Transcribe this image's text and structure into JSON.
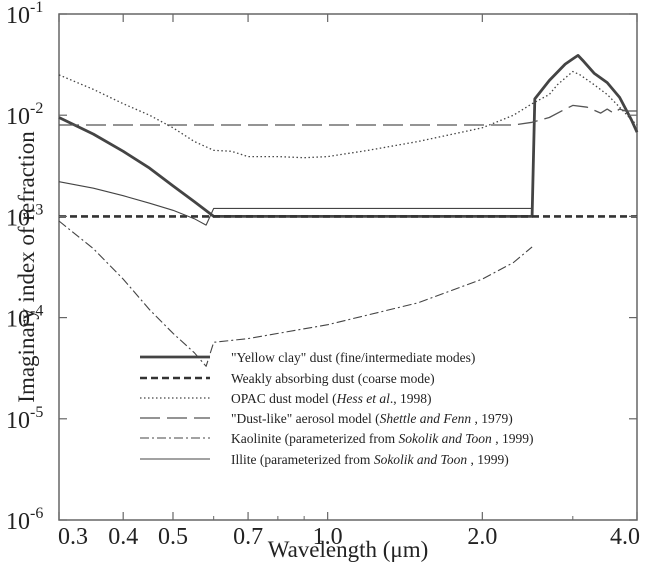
{
  "chart_data": {
    "type": "line",
    "xlabel": "Wavelength  (μm)",
    "ylabel": "Imaginary index of refraction",
    "xscale": "log",
    "yscale": "log",
    "xlim": [
      0.3,
      4.0
    ],
    "ylim": [
      1e-06,
      0.1
    ],
    "x_ticks": [
      {
        "value": 0.3,
        "label": "0.3"
      },
      {
        "value": 0.4,
        "label": "0.4"
      },
      {
        "value": 0.5,
        "label": "0.5"
      },
      {
        "value": 0.7,
        "label": "0.7"
      },
      {
        "value": 1.0,
        "label": "1.0"
      },
      {
        "value": 2.0,
        "label": "2.0"
      },
      {
        "value": 4.0,
        "label": "4.0"
      }
    ],
    "y_ticks": [
      {
        "value": 1e-06,
        "base": "10",
        "exp": "-6"
      },
      {
        "value": 1e-05,
        "base": "10",
        "exp": "-5"
      },
      {
        "value": 0.0001,
        "base": "10",
        "exp": "-4"
      },
      {
        "value": 0.001,
        "base": "10",
        "exp": "-3"
      },
      {
        "value": 0.01,
        "base": "10",
        "exp": "-2"
      },
      {
        "value": 0.1,
        "base": "10",
        "exp": "-1"
      }
    ],
    "grid": false,
    "legend_position": "bottom-center",
    "series": [
      {
        "name": "\"Yellow clay\" dust (fine/intermediate modes)",
        "legend_parts": [
          {
            "text": "\"Yellow clay\" dust (fine/intermediate modes)",
            "italic": false
          }
        ],
        "style": "thick-solid",
        "color": "#444444",
        "points": [
          [
            0.3,
            0.0095
          ],
          [
            0.35,
            0.0065
          ],
          [
            0.4,
            0.0044
          ],
          [
            0.45,
            0.003
          ],
          [
            0.5,
            0.002
          ],
          [
            0.55,
            0.0014
          ],
          [
            0.6,
            0.001
          ],
          [
            0.7,
            0.001
          ],
          [
            1.0,
            0.001
          ],
          [
            2.0,
            0.001
          ],
          [
            2.5,
            0.001
          ],
          [
            2.53,
            0.0145
          ],
          [
            2.7,
            0.022
          ],
          [
            2.9,
            0.032
          ],
          [
            3.0,
            0.036
          ],
          [
            3.07,
            0.039
          ],
          [
            3.15,
            0.034
          ],
          [
            3.3,
            0.026
          ],
          [
            3.5,
            0.021
          ],
          [
            3.7,
            0.015
          ],
          [
            3.9,
            0.009
          ],
          [
            4.0,
            0.0068
          ]
        ]
      },
      {
        "name": "Weakly absorbing dust (coarse mode)",
        "legend_parts": [
          {
            "text": "Weakly absorbing dust (coarse mode)",
            "italic": false
          }
        ],
        "style": "thick-dashed",
        "color": "#333333",
        "points": [
          [
            0.3,
            0.001
          ],
          [
            4.0,
            0.001
          ]
        ]
      },
      {
        "name": "OPAC dust model (Hess et al., 1998)",
        "legend_parts": [
          {
            "text": "OPAC dust model (",
            "italic": false
          },
          {
            "text": "Hess et al",
            "italic": true
          },
          {
            "text": "., 1998)",
            "italic": false
          }
        ],
        "style": "dotted",
        "color": "#444444",
        "points": [
          [
            0.3,
            0.025
          ],
          [
            0.35,
            0.018
          ],
          [
            0.4,
            0.013
          ],
          [
            0.45,
            0.01
          ],
          [
            0.5,
            0.0075
          ],
          [
            0.55,
            0.0055
          ],
          [
            0.6,
            0.0045
          ],
          [
            0.65,
            0.0044
          ],
          [
            0.7,
            0.0039
          ],
          [
            0.8,
            0.0039
          ],
          [
            0.9,
            0.0038
          ],
          [
            1.0,
            0.0039
          ],
          [
            1.2,
            0.0045
          ],
          [
            1.5,
            0.0055
          ],
          [
            2.0,
            0.0075
          ],
          [
            2.3,
            0.01
          ],
          [
            2.5,
            0.013
          ],
          [
            2.7,
            0.016
          ],
          [
            2.8,
            0.02
          ],
          [
            3.0,
            0.027
          ],
          [
            3.1,
            0.025
          ],
          [
            3.3,
            0.02
          ],
          [
            3.5,
            0.016
          ],
          [
            3.7,
            0.012
          ],
          [
            3.9,
            0.009
          ],
          [
            4.0,
            0.008
          ]
        ]
      },
      {
        "name": "\"Dust-like\" aerosol model (Shettle and Fenn, 1979)",
        "legend_parts": [
          {
            "text": "\"Dust-like\" aerosol model (",
            "italic": false
          },
          {
            "text": "Shettle and Fenn",
            "italic": true
          },
          {
            "text": " , 1979)",
            "italic": false
          }
        ],
        "style": "long-dash",
        "color": "#555555",
        "points": [
          [
            0.3,
            0.008
          ],
          [
            2.3,
            0.008
          ],
          [
            2.5,
            0.0085
          ],
          [
            2.7,
            0.0095
          ],
          [
            2.9,
            0.0115
          ],
          [
            3.0,
            0.0125
          ],
          [
            3.2,
            0.012
          ],
          [
            3.4,
            0.0105
          ],
          [
            3.5,
            0.0115
          ],
          [
            3.6,
            0.0105
          ],
          [
            3.7,
            0.0115
          ],
          [
            3.8,
            0.011
          ],
          [
            4.0,
            0.011
          ]
        ]
      },
      {
        "name": "Kaolinite (parameterized from Sokolik and Toon, 1999)",
        "legend_parts": [
          {
            "text": "Kaolinite (parameterized from ",
            "italic": false
          },
          {
            "text": "Sokolik and Toon",
            "italic": true
          },
          {
            "text": " , 1999)",
            "italic": false
          }
        ],
        "style": "dash-dot",
        "color": "#444444",
        "points": [
          [
            0.3,
            0.0009
          ],
          [
            0.35,
            0.00048
          ],
          [
            0.4,
            0.00024
          ],
          [
            0.45,
            0.00012
          ],
          [
            0.5,
            7e-05
          ],
          [
            0.55,
            4.5e-05
          ],
          [
            0.58,
            3.3e-05
          ],
          [
            0.6,
            5.7e-05
          ],
          [
            0.7,
            6.2e-05
          ],
          [
            1.0,
            8.5e-05
          ],
          [
            1.5,
            0.00014
          ],
          [
            2.0,
            0.00024
          ],
          [
            2.3,
            0.00035
          ],
          [
            2.5,
            0.0005
          ]
        ]
      },
      {
        "name": "Illite (parameterized from Sokolik and Toon, 1999)",
        "legend_parts": [
          {
            "text": "Illite (parameterized from ",
            "italic": false
          },
          {
            "text": "Sokolik and Toon",
            "italic": true
          },
          {
            "text": " , 1999)",
            "italic": false
          }
        ],
        "style": "thin-solid",
        "color": "#444444",
        "points": [
          [
            0.3,
            0.0022
          ],
          [
            0.35,
            0.0019
          ],
          [
            0.4,
            0.0016
          ],
          [
            0.45,
            0.00135
          ],
          [
            0.5,
            0.00115
          ],
          [
            0.55,
            0.00095
          ],
          [
            0.58,
            0.00082
          ],
          [
            0.6,
            0.0012
          ],
          [
            0.7,
            0.0012
          ],
          [
            1.0,
            0.0012
          ],
          [
            2.0,
            0.0012
          ],
          [
            2.5,
            0.0012
          ]
        ]
      }
    ]
  }
}
